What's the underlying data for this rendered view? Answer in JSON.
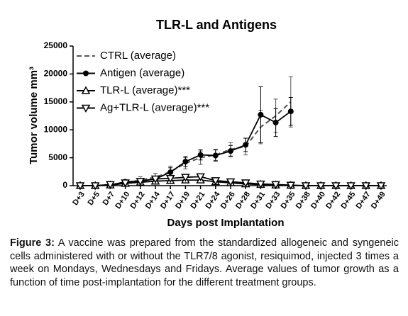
{
  "chart_data": {
    "type": "line",
    "title": "TLR-L and Antigens",
    "x_label": "Days post Implantation",
    "y_label": "Tumor volume mm³",
    "categories": [
      "D+3",
      "D+5",
      "D+7",
      "D+10",
      "D+12",
      "D+14",
      "D+17",
      "D+19",
      "D+21",
      "D+24",
      "D+26",
      "D+28",
      "D+31",
      "D+33",
      "D+35",
      "D+38",
      "D+40",
      "D+42",
      "D+45",
      "D+47",
      "D+49"
    ],
    "ylim": [
      0,
      25000
    ],
    "yticks": [
      0,
      5000,
      10000,
      15000,
      20000,
      25000
    ],
    "legend": "upper left",
    "series": [
      {
        "name": "CTRL (average)",
        "color": "#555555",
        "marker": "none",
        "dashed": true,
        "values": [
          0,
          0,
          100,
          500,
          1000,
          1500,
          2500,
          4000,
          5000,
          5500,
          6500,
          7000,
          10500,
          12500,
          15000,
          null,
          null,
          null,
          null,
          null,
          null
        ],
        "errors": [
          0,
          0,
          100,
          300,
          600,
          700,
          1000,
          1000,
          1200,
          1000,
          1200,
          1500,
          3000,
          3000,
          4500,
          null,
          null,
          null,
          null,
          null,
          null
        ]
      },
      {
        "name": "Antigen (average)",
        "color": "#000000",
        "marker": "circle",
        "dashed": false,
        "values": [
          0,
          0,
          100,
          700,
          800,
          1200,
          2400,
          4300,
          5500,
          5400,
          6200,
          7300,
          12700,
          11300,
          13300,
          null,
          null,
          null,
          null,
          null,
          null
        ],
        "errors": [
          0,
          0,
          100,
          300,
          400,
          500,
          800,
          900,
          900,
          1000,
          1000,
          1200,
          5000,
          2500,
          2500,
          null,
          null,
          null,
          null,
          null,
          null
        ]
      },
      {
        "name": "TLR-L (average)***",
        "color": "#000000",
        "marker": "triangle-up",
        "dashed": false,
        "values": [
          0,
          0,
          100,
          400,
          600,
          800,
          900,
          1000,
          1000,
          700,
          500,
          300,
          200,
          100,
          50,
          0,
          0,
          0,
          0,
          0,
          0
        ]
      },
      {
        "name": "Ag+TLR-L (average)***",
        "color": "#000000",
        "marker": "triangle-down",
        "dashed": false,
        "values": [
          0,
          0,
          200,
          500,
          800,
          1200,
          1300,
          1500,
          1600,
          900,
          700,
          500,
          300,
          200,
          100,
          0,
          0,
          0,
          0,
          0,
          0
        ]
      }
    ]
  },
  "caption": {
    "label": "Figure 3:",
    "text": "A vaccine was prepared from the standardized allogeneic and syngeneic cells administered  with or without the TLR7/8 agonist, resiquimod, injected 3 times a week on Mondays, Wednesdays and Fridays. Average values of tumor growth as a function of time post-implantation for the different treatment groups."
  }
}
